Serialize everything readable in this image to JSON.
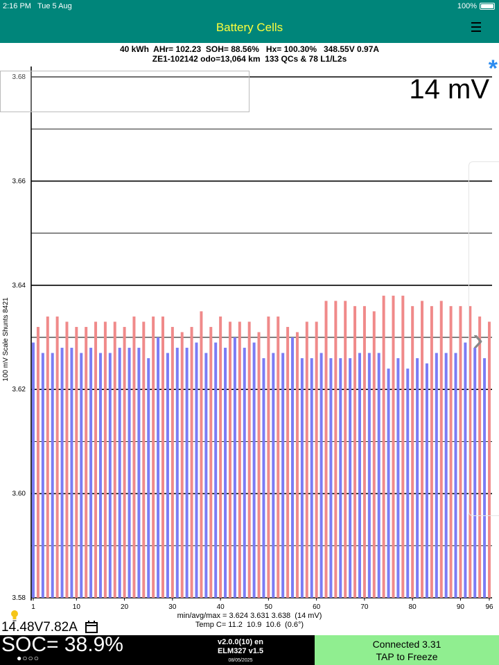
{
  "status_bar": {
    "time": "2:16 PM",
    "date": "Tue 5 Aug",
    "battery_percent": "100%"
  },
  "nav": {
    "title": "Battery Cells",
    "menu_icon": "hamburger-menu-icon"
  },
  "summary": {
    "line1": "40 kWh  AHr= 102.23  SOH= 88.56%   Hx= 100.30%   348.55V 0.97A",
    "line2": "ZE1-102142 odo=13,064 km  133 QCs & 78 L1/L2s"
  },
  "range_label": "14 mV",
  "asterisk": "*",
  "colors": {
    "header": "#00857a",
    "title": "#ffff3c",
    "bar_odd": "#7b7cf4",
    "bar_even": "#f08a8a",
    "accent": "#2d8cf0",
    "freeze_button": "#90ee90"
  },
  "chart_data": {
    "type": "bar",
    "ylabel": "100 mV Scale   Shunts 8421",
    "ylim": [
      3.58,
      3.682
    ],
    "yticks": [
      "3.58",
      "3.60",
      "3.62",
      "3.64",
      "3.66",
      "3.68"
    ],
    "xticks": [
      "1",
      "10",
      "20",
      "30",
      "40",
      "50",
      "60",
      "70",
      "80",
      "90",
      "96"
    ],
    "grid": true,
    "x": [
      1,
      2,
      3,
      4,
      5,
      6,
      7,
      8,
      9,
      10,
      11,
      12,
      13,
      14,
      15,
      16,
      17,
      18,
      19,
      20,
      21,
      22,
      23,
      24,
      25,
      26,
      27,
      28,
      29,
      30,
      31,
      32,
      33,
      34,
      35,
      36,
      37,
      38,
      39,
      40,
      41,
      42,
      43,
      44,
      45,
      46,
      47,
      48,
      49,
      50,
      51,
      52,
      53,
      54,
      55,
      56,
      57,
      58,
      59,
      60,
      61,
      62,
      63,
      64,
      65,
      66,
      67,
      68,
      69,
      70,
      71,
      72,
      73,
      74,
      75,
      76,
      77,
      78,
      79,
      80,
      81,
      82,
      83,
      84,
      85,
      86,
      87,
      88,
      89,
      90,
      91,
      92,
      93,
      94,
      95,
      96
    ],
    "values": [
      3.629,
      3.632,
      3.627,
      3.634,
      3.627,
      3.634,
      3.628,
      3.633,
      3.628,
      3.632,
      3.627,
      3.632,
      3.628,
      3.633,
      3.627,
      3.633,
      3.627,
      3.633,
      3.628,
      3.632,
      3.628,
      3.634,
      3.628,
      3.633,
      3.626,
      3.634,
      3.63,
      3.634,
      3.627,
      3.632,
      3.628,
      3.631,
      3.628,
      3.632,
      3.629,
      3.635,
      3.627,
      3.632,
      3.629,
      3.634,
      3.628,
      3.633,
      3.63,
      3.633,
      3.628,
      3.633,
      3.629,
      3.631,
      3.626,
      3.634,
      3.627,
      3.634,
      3.627,
      3.632,
      3.63,
      3.631,
      3.626,
      3.633,
      3.626,
      3.633,
      3.627,
      3.637,
      3.626,
      3.637,
      3.626,
      3.637,
      3.626,
      3.636,
      3.627,
      3.636,
      3.627,
      3.635,
      3.627,
      3.638,
      3.624,
      3.638,
      3.626,
      3.638,
      3.624,
      3.636,
      3.626,
      3.637,
      3.625,
      3.636,
      3.627,
      3.637,
      3.627,
      3.636,
      3.627,
      3.636,
      3.629,
      3.636,
      3.628,
      3.634,
      3.626,
      3.633
    ]
  },
  "stats": {
    "minavgmax": "min/avg/max = 3.624 3.631 3.638  (14 mV)",
    "temps": "Temp C= 11.2  10.9  10.6  (0.6°)"
  },
  "bottom": {
    "voltage_current": "14.48V7.82A",
    "soc": "SOC= 38.9%",
    "page_dots": "●○○○",
    "version": "v2.0.0(10) en",
    "adapter": "ELM327 v1.5",
    "date": "08/05/2025",
    "connected": "Connected 3.31",
    "freeze": "TAP to Freeze"
  }
}
